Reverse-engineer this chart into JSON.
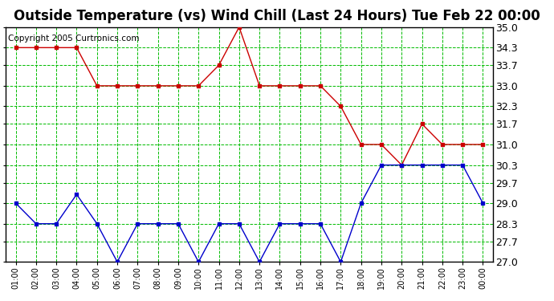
{
  "title": "Outside Temperature (vs) Wind Chill (Last 24 Hours) Tue Feb 22 00:00",
  "copyright": "Copyright 2005 Curtronics.com",
  "x_labels": [
    "01:00",
    "02:00",
    "03:00",
    "04:00",
    "05:00",
    "06:00",
    "07:00",
    "08:00",
    "09:00",
    "10:00",
    "11:00",
    "12:00",
    "13:00",
    "14:00",
    "15:00",
    "16:00",
    "17:00",
    "18:00",
    "19:00",
    "20:00",
    "21:00",
    "22:00",
    "23:00",
    "00:00"
  ],
  "red_data": [
    34.3,
    34.3,
    34.3,
    34.3,
    33.0,
    33.0,
    33.0,
    33.0,
    33.0,
    33.0,
    33.7,
    35.0,
    33.0,
    33.0,
    33.0,
    33.0,
    32.3,
    31.0,
    31.0,
    30.3,
    31.7,
    31.0,
    31.0,
    31.0
  ],
  "blue_data": [
    29.0,
    28.3,
    28.3,
    29.3,
    28.3,
    27.0,
    28.3,
    28.3,
    28.3,
    27.0,
    28.3,
    28.3,
    27.0,
    28.3,
    28.3,
    28.3,
    27.0,
    29.0,
    30.3,
    30.3,
    30.3,
    30.3,
    30.3,
    29.0
  ],
  "ylim": [
    27.0,
    35.0
  ],
  "yticks": [
    27.0,
    27.7,
    28.3,
    29.0,
    29.7,
    30.3,
    31.0,
    31.7,
    32.3,
    33.0,
    33.7,
    34.3,
    35.0
  ],
  "red_color": "#cc0000",
  "blue_color": "#0000cc",
  "bg_color": "#ffffff",
  "plot_bg_color": "#ffffff",
  "grid_color": "#00bb00",
  "title_fontsize": 12,
  "copyright_fontsize": 7.5
}
